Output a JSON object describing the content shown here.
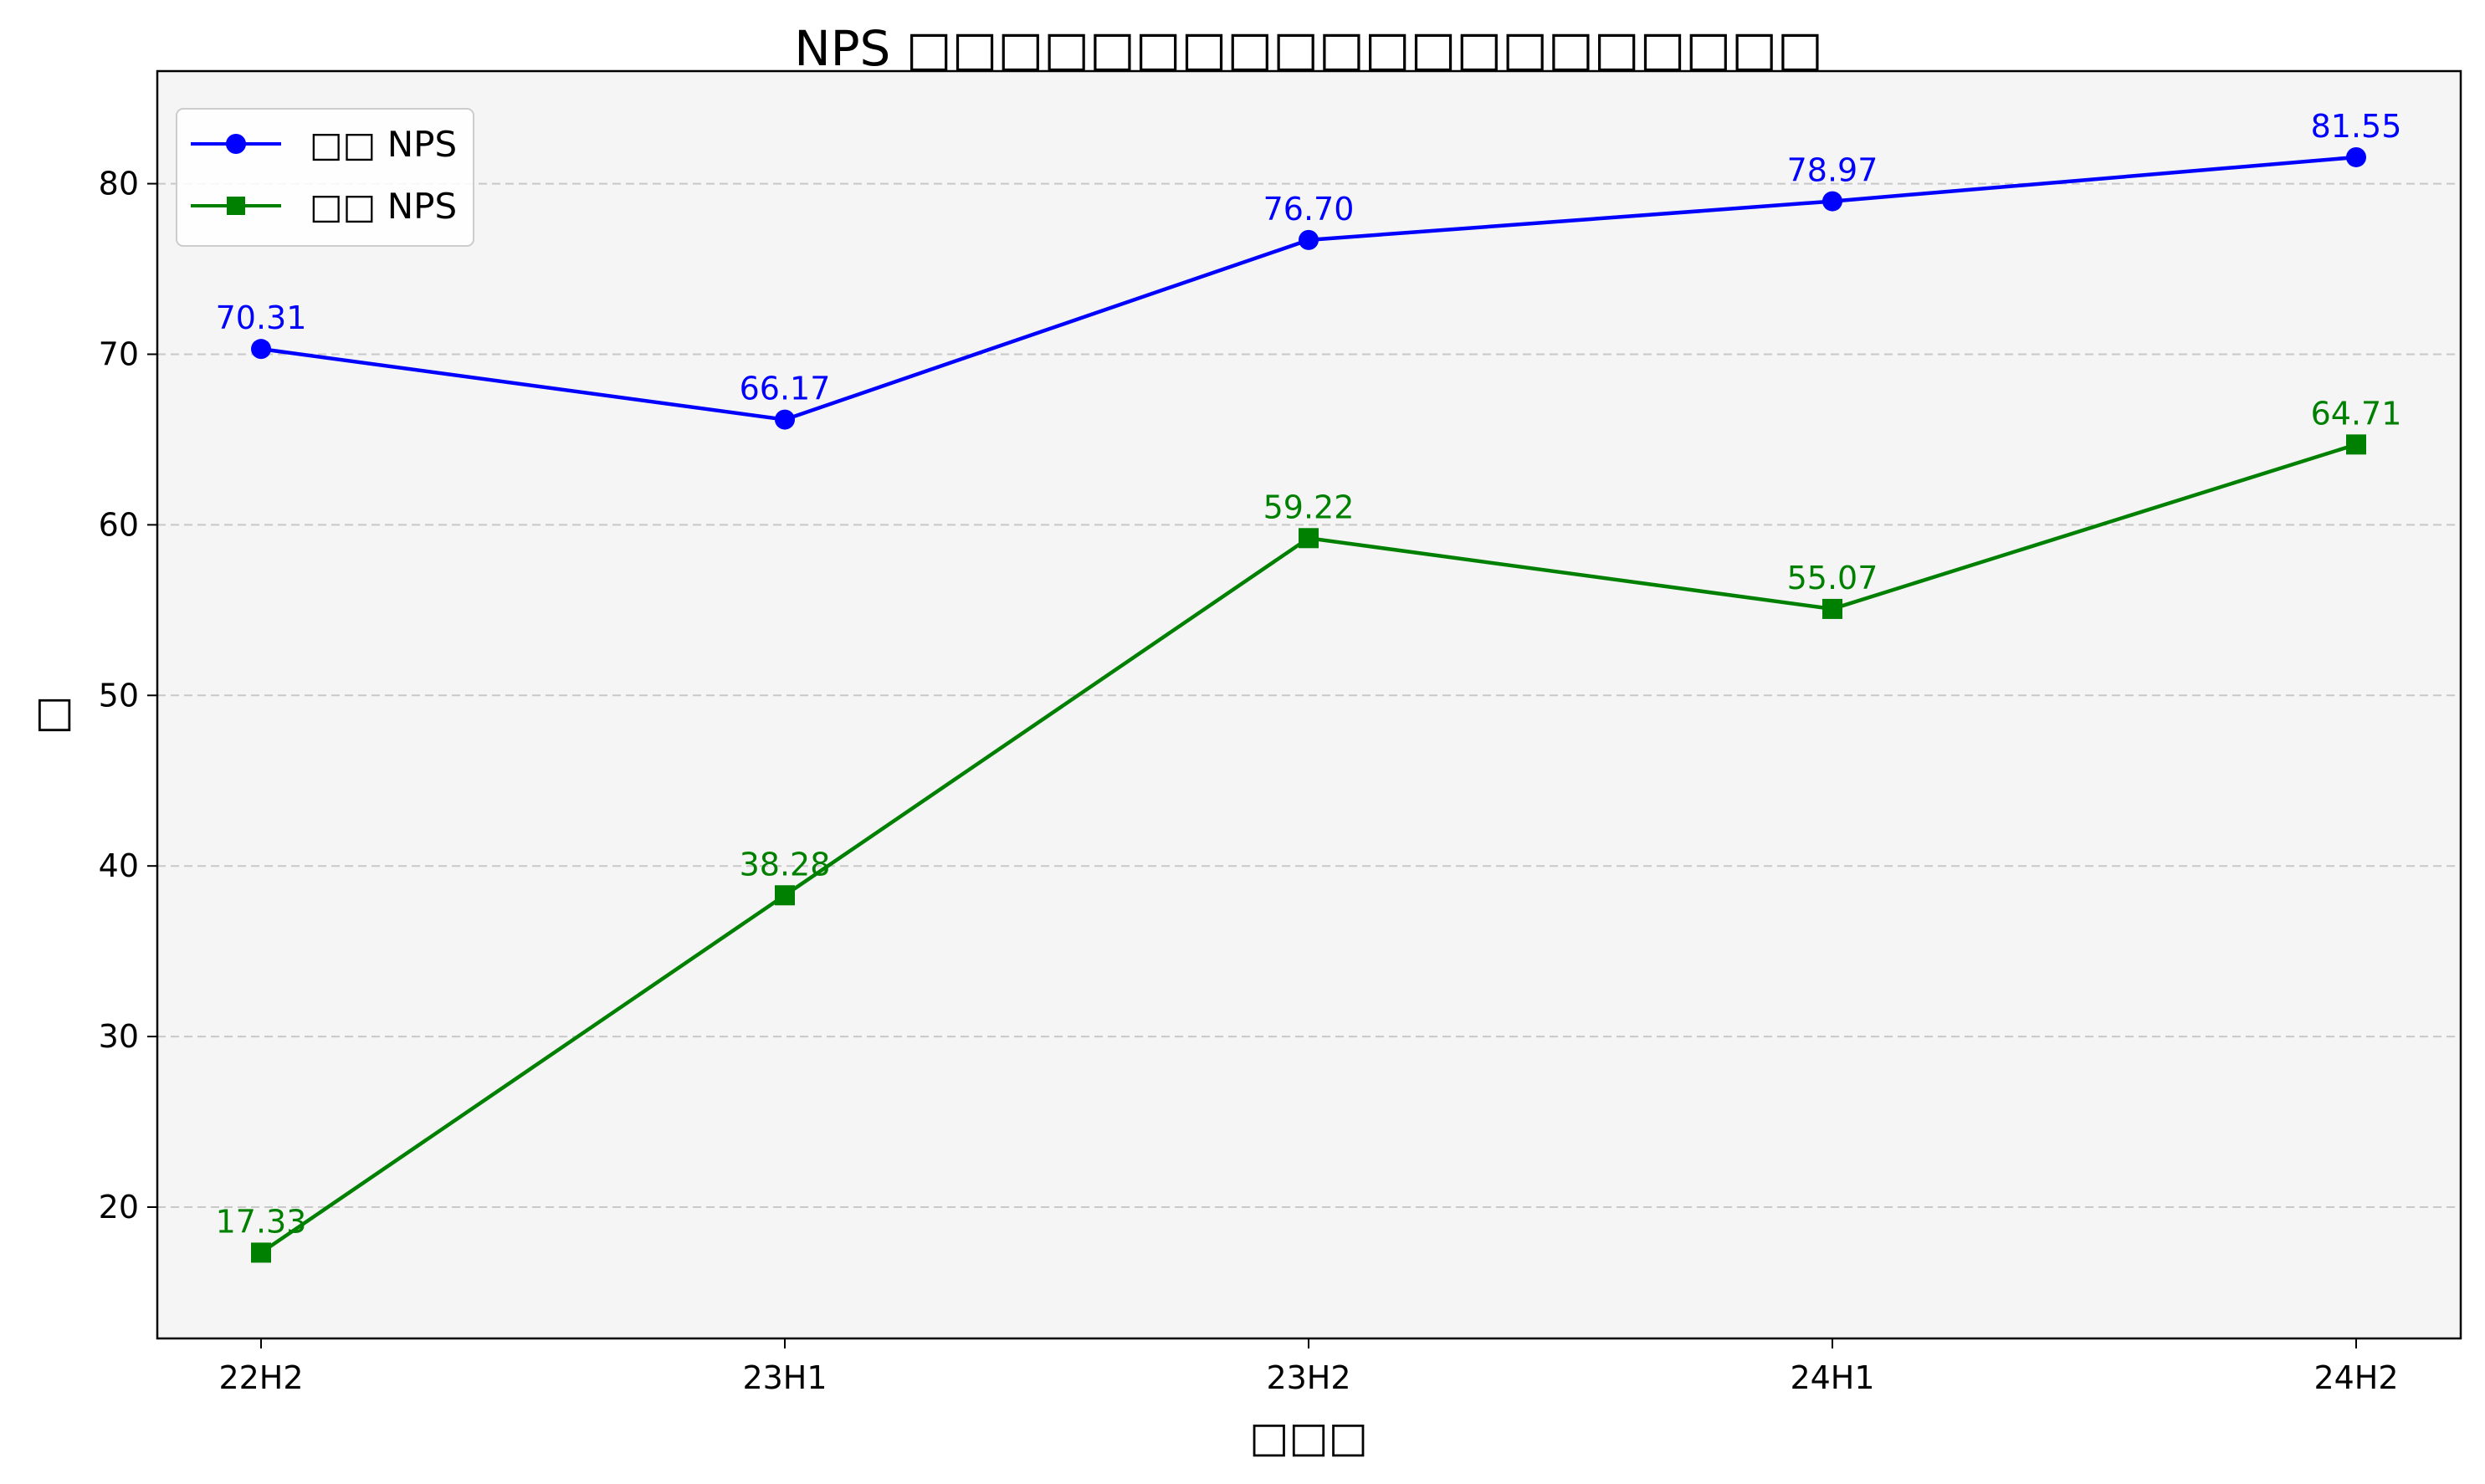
{
  "chart_data": {
    "type": "line",
    "title": "NPS □□□□□□□□□□□□□□□□□□□□",
    "xlabel": "□□□",
    "ylabel": "□",
    "categories": [
      "22H2",
      "23H1",
      "23H2",
      "24H1",
      "24H2"
    ],
    "ylim": [
      12.3,
      86.6
    ],
    "yticks": [
      20,
      30,
      40,
      50,
      60,
      70,
      80
    ],
    "grid": "y-dashed",
    "legend_position": "top-left",
    "background": "#f5f5f5",
    "series": [
      {
        "name": "□□ NPS",
        "color": "#0000ff",
        "marker": "circle",
        "values": [
          70.31,
          66.17,
          76.7,
          78.97,
          81.55
        ],
        "labels": [
          "70.31",
          "66.17",
          "76.70",
          "78.97",
          "81.55"
        ]
      },
      {
        "name": "□□ NPS",
        "color": "#008000",
        "marker": "square",
        "values": [
          17.33,
          38.28,
          59.22,
          55.07,
          64.71
        ],
        "labels": [
          "17.33",
          "38.28",
          "59.22",
          "55.07",
          "64.71"
        ]
      }
    ]
  }
}
